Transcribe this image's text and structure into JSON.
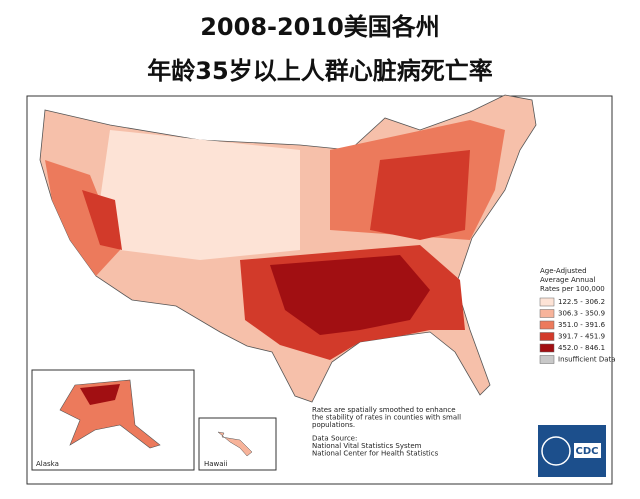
{
  "title": [
    "2008-2010美国各州",
    "年龄35岁以上人群心脏病死亡率"
  ],
  "legend": {
    "title": [
      "Age-Adjusted",
      "Average Annual",
      "Rates per 100,000"
    ],
    "items": [
      {
        "label": "122.5 - 306.2",
        "color": "#fde3d6"
      },
      {
        "label": "306.3 - 350.9",
        "color": "#f7b39a"
      },
      {
        "label": "351.0 - 391.6",
        "color": "#ec7a5c"
      },
      {
        "label": "391.7 - 451.9",
        "color": "#d23a2a"
      },
      {
        "label": "452.0 - 846.1",
        "color": "#a10f12"
      },
      {
        "label": "Insufficient Data",
        "color": "#c8c8c8"
      }
    ]
  },
  "note": [
    "Rates are spatially smoothed to enhance",
    "the stability of rates in counties with small",
    "populations."
  ],
  "source": [
    "Data Source:",
    "National Vital Statistics System",
    "National Center for Health Statistics"
  ],
  "insets": [
    "Alaska",
    "Hawaii"
  ],
  "logo": "CDC"
}
